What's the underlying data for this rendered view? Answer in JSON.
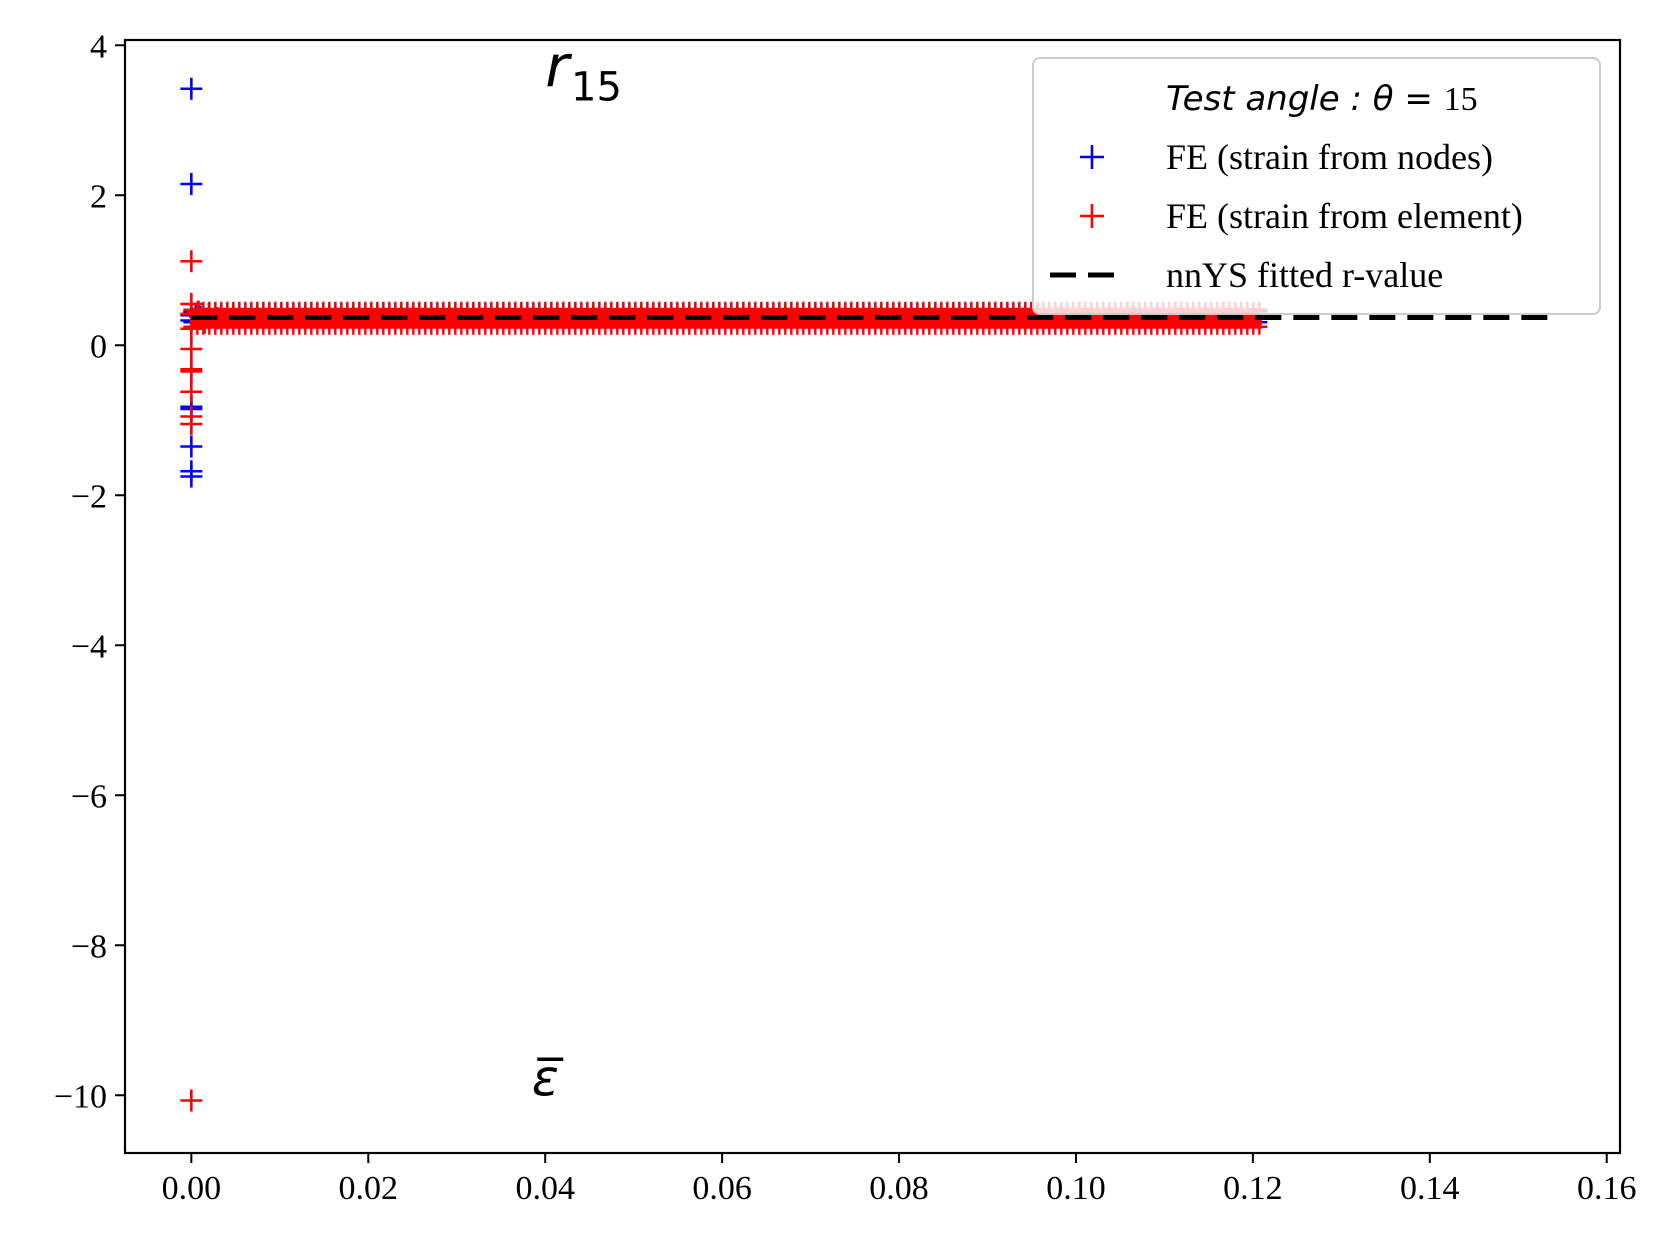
{
  "chart_data": {
    "type": "scatter",
    "title": "",
    "xlabel": "",
    "ylabel": "",
    "xlim": [
      -0.0075,
      0.1615
    ],
    "ylim": [
      -10.77,
      4.07
    ],
    "xticks": [
      0.0,
      0.02,
      0.04,
      0.06,
      0.08,
      0.1,
      0.12,
      0.14,
      0.16
    ],
    "xtick_labels": [
      "0.00",
      "0.02",
      "0.04",
      "0.06",
      "0.08",
      "0.10",
      "0.12",
      "0.14",
      "0.16"
    ],
    "yticks": [
      4,
      2,
      0,
      -2,
      -4,
      -6,
      -8,
      -10
    ],
    "ytick_labels": [
      "4",
      "2",
      "0",
      "−2",
      "−4",
      "−6",
      "−8",
      "−10"
    ],
    "grid": false,
    "legend_placement": "top-right",
    "annotations": [
      {
        "text": "r",
        "subscript": "15",
        "x": 0.04,
        "y": 3.45
      },
      {
        "text": "ε̅",
        "x": 0.0385,
        "y": -10.0
      }
    ],
    "legend": {
      "title_italic": "Test  angle : θ = ",
      "title_value": "15",
      "entries": [
        {
          "label": "FE (strain from nodes)",
          "marker": "+",
          "color": "#0000ff"
        },
        {
          "label": "FE (strain from element)",
          "marker": "+",
          "color": "#ff0000"
        },
        {
          "label": "nnYS fitted r-value",
          "marker": "dashed-line",
          "color": "#000000"
        }
      ]
    },
    "series": [
      {
        "name": "FE (strain from nodes)",
        "marker": "+",
        "color": "#0000ff",
        "points": [
          [
            0.0,
            3.42
          ],
          [
            0.0,
            2.15
          ],
          [
            0.0,
            0.4
          ],
          [
            0.0,
            0.33
          ],
          [
            0.0,
            -0.82
          ],
          [
            0.0,
            -0.85
          ],
          [
            0.0,
            -1.35
          ],
          [
            0.0,
            -1.68
          ],
          [
            0.0,
            -1.75
          ],
          [
            0.0005,
            0.4
          ],
          [
            0.001,
            0.38
          ],
          [
            0.002,
            0.42
          ],
          [
            0.003,
            0.36
          ]
        ],
        "dense_band": {
          "x_start": 0.0,
          "x_end": 0.121,
          "y_low": 0.28,
          "y_high": 0.48
        }
      },
      {
        "name": "FE (strain from element)",
        "marker": "+",
        "color": "#ff0000",
        "points": [
          [
            0.0,
            1.12
          ],
          [
            0.0,
            0.55
          ],
          [
            0.0,
            0.42
          ],
          [
            0.0,
            0.22
          ],
          [
            0.0,
            -0.05
          ],
          [
            0.0,
            -0.32
          ],
          [
            0.0,
            -0.35
          ],
          [
            0.0,
            -0.62
          ],
          [
            0.0,
            -0.95
          ],
          [
            0.0,
            -1.05
          ],
          [
            0.0,
            -10.07
          ],
          [
            0.0008,
            0.45
          ],
          [
            0.0015,
            0.3
          ],
          [
            0.002,
            0.4
          ]
        ],
        "dense_band": {
          "x_start": 0.0,
          "x_end": 0.121,
          "y_low": 0.22,
          "y_high": 0.5
        }
      },
      {
        "name": "nnYS fitted r-value",
        "line_style": "dashed",
        "color": "#000000",
        "x": [
          0.0,
          0.154
        ],
        "y": [
          0.37,
          0.37
        ]
      }
    ]
  }
}
